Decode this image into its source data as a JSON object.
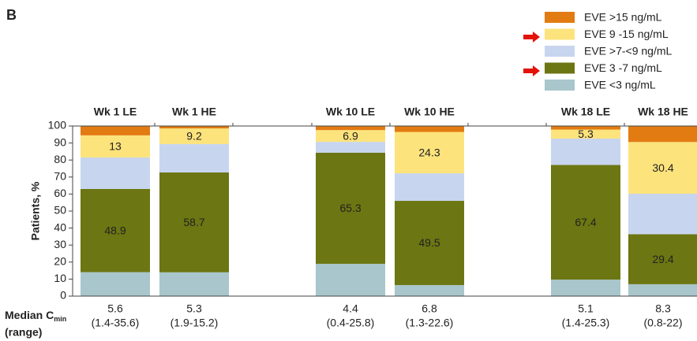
{
  "chart_data": {
    "type": "stacked_bar",
    "panel_label": "B",
    "y_label": "Patients, %",
    "categories": [
      "Wk 1 LE",
      "Wk 1 HE",
      "Wk 10 LE",
      "Wk 10 HE",
      "Wk 18 LE",
      "Wk 18 HE"
    ],
    "series": [
      {
        "name": "EVE <3 ng/mL",
        "color": "#a8c6cb",
        "values": [
          14.1,
          14,
          19,
          6.5,
          9.7,
          7
        ],
        "value_labels": [
          null,
          null,
          null,
          null,
          null,
          null
        ]
      },
      {
        "name": "EVE 3 -7 ng/mL",
        "color": "#6c7612",
        "values": [
          48.9,
          58.7,
          65.3,
          49.5,
          67.4,
          29.4
        ],
        "value_labels": [
          "48.9",
          "58.7",
          "65.3",
          "49.5",
          "67.4",
          "29.4"
        ]
      },
      {
        "name": "EVE >7-<9 ng/mL",
        "color": "#c8d5ef",
        "values": [
          18.5,
          16.7,
          6.4,
          16.2,
          15.5,
          23.8
        ],
        "value_labels": [
          null,
          null,
          null,
          null,
          null,
          null
        ]
      },
      {
        "name": "EVE 9 -15 ng/mL",
        "color": "#fde37c",
        "values": [
          13,
          9.2,
          6.9,
          24.3,
          5.3,
          30.4
        ],
        "value_labels": [
          "13",
          "9.2",
          "6.9",
          "24.3",
          "5.3",
          "30.4"
        ]
      },
      {
        "name": "EVE >15 ng/mL",
        "color": "#e27b12",
        "values": [
          5.5,
          1.4,
          2.4,
          3.5,
          2.1,
          9.4
        ],
        "value_labels": [
          null,
          null,
          null,
          null,
          null,
          null
        ]
      }
    ],
    "ylim": [
      0,
      100
    ],
    "yticks": [
      0,
      10,
      20,
      30,
      40,
      50,
      60,
      70,
      80,
      90,
      100
    ],
    "row_label": {
      "main": "Median C",
      "sub": "min",
      "line2": "(range)"
    },
    "medians": [
      5.6,
      5.3,
      4.4,
      6.8,
      5.1,
      8.3
    ],
    "ranges": [
      "(1.4-35.6)",
      "(1.9-15.2)",
      "(0.4-25.8)",
      "(1.3-22.6)",
      "(1.4-25.3)",
      "(0.8-22)"
    ]
  }
}
